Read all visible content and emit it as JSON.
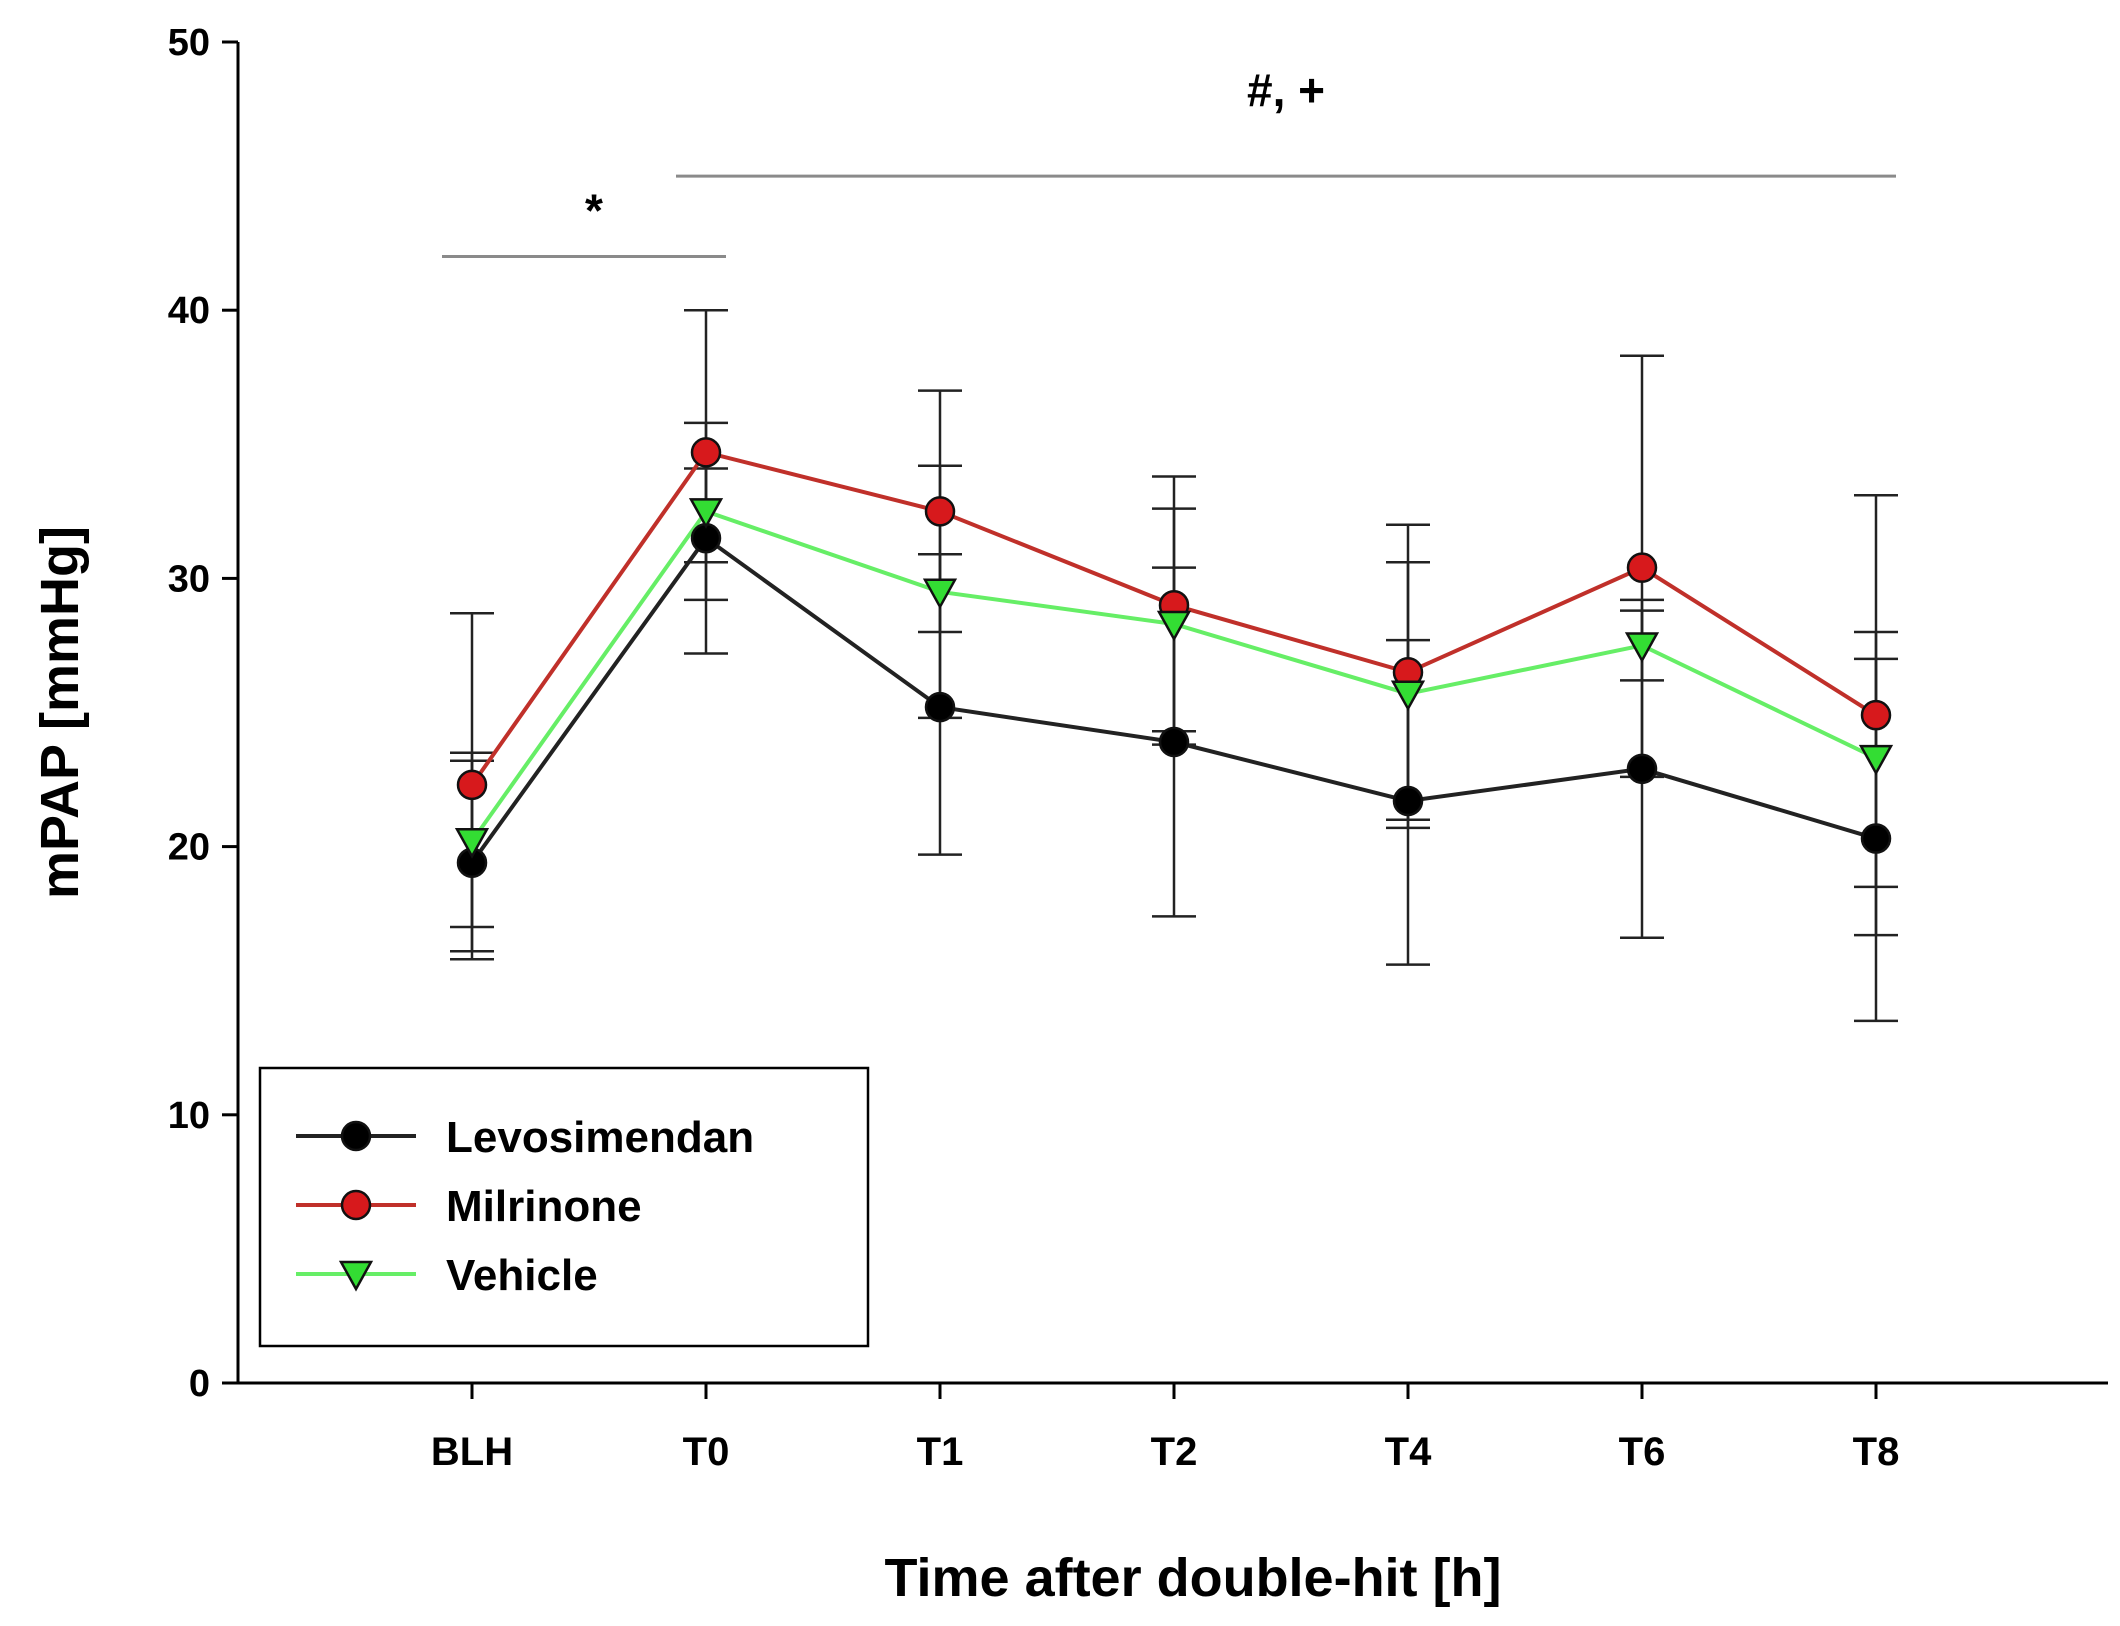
{
  "chart_data": {
    "type": "line",
    "title": "",
    "xlabel": "Time after double-hit [h]",
    "ylabel": "mPAP [mmHg]",
    "ylim": [
      0,
      50
    ],
    "yticks": [
      0,
      10,
      20,
      30,
      40,
      50
    ],
    "categories": [
      "BLH",
      "T0",
      "T1",
      "T2",
      "T4",
      "T6",
      "T8"
    ],
    "grid": false,
    "legend_position": "bottom-left",
    "series": [
      {
        "name": "Levosimendan",
        "color": "#000000",
        "line_color": "#222222",
        "marker": "circle",
        "values": [
          19.4,
          31.5,
          25.2,
          23.9,
          21.7,
          22.9,
          20.3
        ],
        "upper": [
          23.5,
          35.8,
          30.9,
          30.4,
          27.7,
          29.2,
          27.0
        ],
        "lower": [
          16.1,
          27.2,
          19.7,
          17.4,
          15.6,
          16.6,
          13.5
        ]
      },
      {
        "name": "Milrinone",
        "color": "#d7191c",
        "line_color": "#c0302a",
        "marker": "circle",
        "values": [
          22.3,
          34.7,
          32.5,
          29.0,
          26.5,
          30.4,
          24.9
        ],
        "upper": [
          28.7,
          40.0,
          37.0,
          33.8,
          32.0,
          38.3,
          33.1
        ],
        "lower": [
          17.0,
          29.2,
          28.0,
          24.3,
          21.0,
          22.6,
          16.7
        ]
      },
      {
        "name": "Vehicle",
        "color": "#33dd33",
        "line_color": "#66ee66",
        "marker": "triangle-down",
        "values": [
          20.2,
          32.5,
          29.5,
          28.3,
          25.7,
          27.5,
          23.3
        ],
        "upper": [
          23.2,
          34.1,
          34.2,
          32.6,
          30.6,
          28.8,
          28.0
        ],
        "lower": [
          15.8,
          30.6,
          24.8,
          23.8,
          20.7,
          26.2,
          18.5
        ]
      }
    ],
    "annotations": [
      {
        "text": "*",
        "from": "BLH",
        "to": "T0",
        "level": 42.0
      },
      {
        "text": "#, +",
        "from": "T0",
        "to": "T8",
        "level": 45.0
      }
    ]
  }
}
